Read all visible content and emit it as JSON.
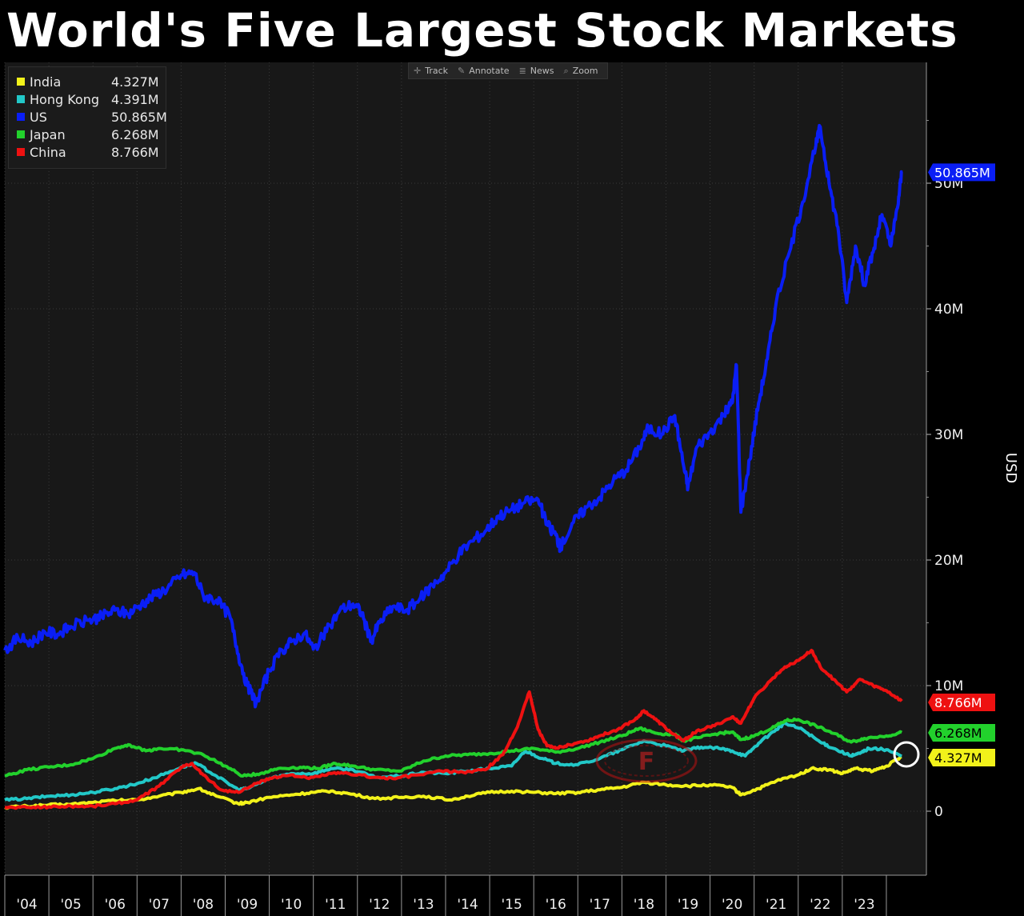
{
  "title": "World's Five Largest Stock Markets",
  "toolbar": {
    "items": [
      {
        "label": "Track",
        "icon": "crosshair-icon"
      },
      {
        "label": "Annotate",
        "icon": "pencil-icon"
      },
      {
        "label": "News",
        "icon": "news-icon"
      },
      {
        "label": "Zoom",
        "icon": "magnifier-icon"
      }
    ]
  },
  "chart_data": {
    "type": "line",
    "ylabel": "USD",
    "ylim": [
      -5000000,
      60000000
    ],
    "xlim": [
      2003.5,
      2023.9
    ],
    "y_ticks": [
      {
        "value": 0,
        "label": "0"
      },
      {
        "value": 10000000,
        "label": "10M"
      },
      {
        "value": 20000000,
        "label": "20M"
      },
      {
        "value": 30000000,
        "label": "30M"
      },
      {
        "value": 40000000,
        "label": "40M"
      },
      {
        "value": 50000000,
        "label": "50M"
      }
    ],
    "x_ticks": [
      "'04",
      "'05",
      "'06",
      "'07",
      "'08",
      "'09",
      "'10",
      "'11",
      "'12",
      "'13",
      "'14",
      "'15",
      "'16",
      "'17",
      "'18",
      "'19",
      "'20",
      "'21",
      "'22",
      "'23"
    ],
    "grid": true,
    "legend_position": "top-left",
    "series": [
      {
        "name": "India",
        "last_label": "4.327M",
        "color": "#f2f21a",
        "points": [
          [
            2003.5,
            0.3
          ],
          [
            2004.0,
            0.4
          ],
          [
            2004.5,
            0.5
          ],
          [
            2005.0,
            0.55
          ],
          [
            2005.5,
            0.7
          ],
          [
            2006.0,
            0.85
          ],
          [
            2006.5,
            0.9
          ],
          [
            2007.0,
            1.2
          ],
          [
            2007.5,
            1.5
          ],
          [
            2007.9,
            1.8
          ],
          [
            2008.3,
            1.2
          ],
          [
            2008.8,
            0.6
          ],
          [
            2009.0,
            0.7
          ],
          [
            2009.5,
            1.1
          ],
          [
            2010.0,
            1.3
          ],
          [
            2010.5,
            1.5
          ],
          [
            2010.9,
            1.6
          ],
          [
            2011.3,
            1.4
          ],
          [
            2011.9,
            1.0
          ],
          [
            2012.5,
            1.1
          ],
          [
            2013.0,
            1.2
          ],
          [
            2013.6,
            0.9
          ],
          [
            2014.0,
            1.2
          ],
          [
            2014.5,
            1.5
          ],
          [
            2015.0,
            1.6
          ],
          [
            2015.5,
            1.5
          ],
          [
            2016.0,
            1.4
          ],
          [
            2016.5,
            1.5
          ],
          [
            2017.0,
            1.7
          ],
          [
            2017.5,
            1.9
          ],
          [
            2018.0,
            2.3
          ],
          [
            2018.5,
            2.1
          ],
          [
            2019.0,
            2.0
          ],
          [
            2019.5,
            2.1
          ],
          [
            2020.0,
            1.9
          ],
          [
            2020.2,
            1.3
          ],
          [
            2020.6,
            1.8
          ],
          [
            2021.0,
            2.4
          ],
          [
            2021.5,
            2.9
          ],
          [
            2021.8,
            3.4
          ],
          [
            2022.2,
            3.3
          ],
          [
            2022.5,
            3.0
          ],
          [
            2022.8,
            3.4
          ],
          [
            2023.2,
            3.2
          ],
          [
            2023.5,
            3.6
          ],
          [
            2023.85,
            4.327
          ]
        ]
      },
      {
        "name": "Hong Kong",
        "last_label": "4.391M",
        "color": "#22c8c8",
        "points": [
          [
            2003.5,
            0.9
          ],
          [
            2004.0,
            1.0
          ],
          [
            2004.5,
            1.2
          ],
          [
            2005.0,
            1.3
          ],
          [
            2005.5,
            1.5
          ],
          [
            2006.0,
            1.8
          ],
          [
            2006.5,
            2.2
          ],
          [
            2007.0,
            2.8
          ],
          [
            2007.5,
            3.5
          ],
          [
            2007.85,
            3.8
          ],
          [
            2008.3,
            2.8
          ],
          [
            2008.8,
            1.7
          ],
          [
            2009.0,
            1.8
          ],
          [
            2009.5,
            2.6
          ],
          [
            2010.0,
            3.0
          ],
          [
            2010.5,
            3.0
          ],
          [
            2010.9,
            3.4
          ],
          [
            2011.4,
            3.3
          ],
          [
            2011.9,
            2.7
          ],
          [
            2012.5,
            2.8
          ],
          [
            2013.0,
            3.1
          ],
          [
            2013.5,
            3.0
          ],
          [
            2014.0,
            3.2
          ],
          [
            2014.5,
            3.4
          ],
          [
            2015.0,
            3.6
          ],
          [
            2015.3,
            4.8
          ],
          [
            2015.7,
            4.2
          ],
          [
            2016.0,
            3.8
          ],
          [
            2016.5,
            3.7
          ],
          [
            2017.0,
            4.2
          ],
          [
            2017.5,
            4.9
          ],
          [
            2018.0,
            5.6
          ],
          [
            2018.5,
            5.2
          ],
          [
            2018.9,
            4.8
          ],
          [
            2019.3,
            5.1
          ],
          [
            2019.7,
            5.0
          ],
          [
            2020.0,
            4.8
          ],
          [
            2020.3,
            4.4
          ],
          [
            2020.6,
            5.4
          ],
          [
            2021.0,
            6.5
          ],
          [
            2021.2,
            7.0
          ],
          [
            2021.6,
            6.5
          ],
          [
            2022.0,
            5.5
          ],
          [
            2022.3,
            5.0
          ],
          [
            2022.7,
            4.4
          ],
          [
            2022.9,
            4.6
          ],
          [
            2023.1,
            5.0
          ],
          [
            2023.5,
            4.9
          ],
          [
            2023.85,
            4.391
          ]
        ]
      },
      {
        "name": "US",
        "last_label": "50.865M",
        "color": "#0a1ef5",
        "points": [
          [
            2003.5,
            12.8
          ],
          [
            2003.8,
            13.8
          ],
          [
            2004.1,
            13.4
          ],
          [
            2004.4,
            14.3
          ],
          [
            2004.7,
            14.1
          ],
          [
            2005.0,
            14.7
          ],
          [
            2005.4,
            15.2
          ],
          [
            2005.7,
            15.5
          ],
          [
            2006.0,
            16.0
          ],
          [
            2006.3,
            15.7
          ],
          [
            2006.6,
            16.5
          ],
          [
            2006.9,
            17.2
          ],
          [
            2007.2,
            17.8
          ],
          [
            2007.5,
            18.8
          ],
          [
            2007.8,
            19.0
          ],
          [
            2008.0,
            17.2
          ],
          [
            2008.3,
            16.8
          ],
          [
            2008.6,
            15.6
          ],
          [
            2008.8,
            12.5
          ],
          [
            2009.0,
            10.0
          ],
          [
            2009.2,
            8.6
          ],
          [
            2009.5,
            11.2
          ],
          [
            2009.8,
            12.8
          ],
          [
            2010.0,
            13.5
          ],
          [
            2010.3,
            14.2
          ],
          [
            2010.5,
            12.9
          ],
          [
            2010.8,
            14.3
          ],
          [
            2011.1,
            16.0
          ],
          [
            2011.4,
            16.5
          ],
          [
            2011.6,
            15.8
          ],
          [
            2011.8,
            13.5
          ],
          [
            2012.0,
            15.0
          ],
          [
            2012.3,
            16.3
          ],
          [
            2012.6,
            16.0
          ],
          [
            2012.9,
            16.8
          ],
          [
            2013.2,
            18.0
          ],
          [
            2013.5,
            19.0
          ],
          [
            2013.8,
            20.5
          ],
          [
            2014.1,
            21.5
          ],
          [
            2014.4,
            22.3
          ],
          [
            2014.7,
            23.5
          ],
          [
            2015.0,
            24.0
          ],
          [
            2015.3,
            24.6
          ],
          [
            2015.6,
            24.8
          ],
          [
            2015.8,
            22.8
          ],
          [
            2016.0,
            22.0
          ],
          [
            2016.1,
            21.0
          ],
          [
            2016.4,
            23.0
          ],
          [
            2016.7,
            24.2
          ],
          [
            2017.0,
            25.0
          ],
          [
            2017.3,
            26.3
          ],
          [
            2017.6,
            27.2
          ],
          [
            2017.9,
            29.0
          ],
          [
            2018.1,
            30.5
          ],
          [
            2018.4,
            30.0
          ],
          [
            2018.7,
            31.5
          ],
          [
            2018.9,
            27.5
          ],
          [
            2019.0,
            25.8
          ],
          [
            2019.2,
            29.0
          ],
          [
            2019.5,
            30.2
          ],
          [
            2019.8,
            31.5
          ],
          [
            2020.0,
            32.5
          ],
          [
            2020.1,
            35.5
          ],
          [
            2020.2,
            23.8
          ],
          [
            2020.4,
            28.0
          ],
          [
            2020.6,
            32.5
          ],
          [
            2020.8,
            36.0
          ],
          [
            2021.0,
            40.5
          ],
          [
            2021.3,
            44.5
          ],
          [
            2021.6,
            48.5
          ],
          [
            2021.9,
            53.0
          ],
          [
            2022.0,
            54.5
          ],
          [
            2022.2,
            50.0
          ],
          [
            2022.4,
            46.5
          ],
          [
            2022.6,
            40.5
          ],
          [
            2022.8,
            45.0
          ],
          [
            2023.0,
            42.0
          ],
          [
            2023.2,
            44.5
          ],
          [
            2023.4,
            47.5
          ],
          [
            2023.6,
            45.0
          ],
          [
            2023.75,
            48.0
          ],
          [
            2023.85,
            50.865
          ]
        ]
      },
      {
        "name": "Japan",
        "last_label": "6.268M",
        "color": "#22d12c",
        "points": [
          [
            2003.5,
            2.8
          ],
          [
            2004.0,
            3.3
          ],
          [
            2004.5,
            3.5
          ],
          [
            2005.0,
            3.7
          ],
          [
            2005.5,
            4.2
          ],
          [
            2006.0,
            5.0
          ],
          [
            2006.3,
            5.3
          ],
          [
            2006.7,
            4.8
          ],
          [
            2007.0,
            5.0
          ],
          [
            2007.5,
            4.9
          ],
          [
            2008.0,
            4.5
          ],
          [
            2008.5,
            3.6
          ],
          [
            2008.9,
            2.8
          ],
          [
            2009.3,
            3.0
          ],
          [
            2009.7,
            3.4
          ],
          [
            2010.2,
            3.5
          ],
          [
            2010.6,
            3.4
          ],
          [
            2011.0,
            3.8
          ],
          [
            2011.4,
            3.6
          ],
          [
            2011.9,
            3.3
          ],
          [
            2012.5,
            3.2
          ],
          [
            2013.0,
            4.0
          ],
          [
            2013.5,
            4.4
          ],
          [
            2014.0,
            4.5
          ],
          [
            2014.5,
            4.6
          ],
          [
            2015.0,
            4.8
          ],
          [
            2015.5,
            5.0
          ],
          [
            2016.0,
            4.7
          ],
          [
            2016.5,
            5.0
          ],
          [
            2017.0,
            5.5
          ],
          [
            2017.5,
            6.0
          ],
          [
            2017.9,
            6.6
          ],
          [
            2018.3,
            6.2
          ],
          [
            2018.7,
            6.1
          ],
          [
            2018.9,
            5.6
          ],
          [
            2019.3,
            5.9
          ],
          [
            2019.7,
            6.2
          ],
          [
            2020.0,
            6.3
          ],
          [
            2020.2,
            5.7
          ],
          [
            2020.5,
            6.0
          ],
          [
            2020.9,
            6.6
          ],
          [
            2021.2,
            7.2
          ],
          [
            2021.5,
            7.3
          ],
          [
            2021.9,
            6.8
          ],
          [
            2022.3,
            6.2
          ],
          [
            2022.7,
            5.5
          ],
          [
            2023.0,
            5.8
          ],
          [
            2023.5,
            6.0
          ],
          [
            2023.85,
            6.268
          ]
        ]
      },
      {
        "name": "China",
        "last_label": "8.766M",
        "color": "#ee1111",
        "points": [
          [
            2003.5,
            0.3
          ],
          [
            2004.0,
            0.3
          ],
          [
            2004.5,
            0.35
          ],
          [
            2005.0,
            0.4
          ],
          [
            2005.5,
            0.4
          ],
          [
            2006.0,
            0.6
          ],
          [
            2006.5,
            0.9
          ],
          [
            2007.0,
            2.0
          ],
          [
            2007.5,
            3.5
          ],
          [
            2007.75,
            3.8
          ],
          [
            2008.0,
            2.9
          ],
          [
            2008.4,
            1.7
          ],
          [
            2008.8,
            1.5
          ],
          [
            2009.2,
            2.2
          ],
          [
            2009.6,
            2.7
          ],
          [
            2010.0,
            2.9
          ],
          [
            2010.4,
            2.6
          ],
          [
            2010.9,
            3.0
          ],
          [
            2011.3,
            3.0
          ],
          [
            2011.9,
            2.7
          ],
          [
            2012.3,
            2.6
          ],
          [
            2012.9,
            2.9
          ],
          [
            2013.4,
            3.2
          ],
          [
            2013.9,
            3.1
          ],
          [
            2014.4,
            3.3
          ],
          [
            2014.8,
            4.5
          ],
          [
            2015.1,
            6.5
          ],
          [
            2015.4,
            9.5
          ],
          [
            2015.6,
            6.5
          ],
          [
            2015.8,
            5.2
          ],
          [
            2016.0,
            5.0
          ],
          [
            2016.3,
            5.3
          ],
          [
            2016.7,
            5.6
          ],
          [
            2017.0,
            6.0
          ],
          [
            2017.4,
            6.5
          ],
          [
            2017.8,
            7.3
          ],
          [
            2018.0,
            8.0
          ],
          [
            2018.3,
            7.2
          ],
          [
            2018.6,
            6.3
          ],
          [
            2018.9,
            5.6
          ],
          [
            2019.2,
            6.4
          ],
          [
            2019.6,
            6.8
          ],
          [
            2020.0,
            7.5
          ],
          [
            2020.2,
            7.0
          ],
          [
            2020.5,
            9.0
          ],
          [
            2020.9,
            10.5
          ],
          [
            2021.2,
            11.5
          ],
          [
            2021.5,
            12.0
          ],
          [
            2021.8,
            12.8
          ],
          [
            2022.0,
            11.5
          ],
          [
            2022.3,
            10.5
          ],
          [
            2022.6,
            9.5
          ],
          [
            2022.9,
            10.5
          ],
          [
            2023.2,
            10.0
          ],
          [
            2023.5,
            9.6
          ],
          [
            2023.85,
            8.766
          ]
        ]
      }
    ]
  }
}
